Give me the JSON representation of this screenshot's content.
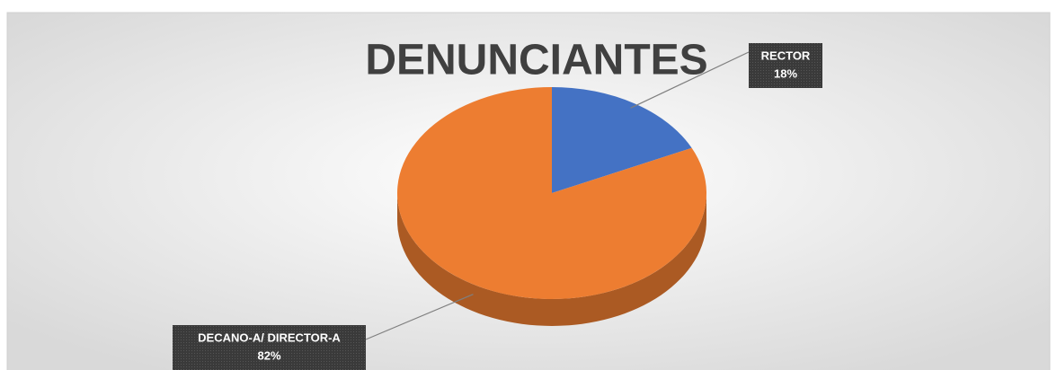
{
  "chart_data": {
    "type": "pie",
    "title": "DENUNCIANTES",
    "categories": [
      "RECTOR",
      "DECANO-A/ DIRECTOR-A"
    ],
    "values": [
      18,
      82
    ],
    "value_labels": [
      "18%",
      "82%"
    ],
    "colors": [
      "#4472c4",
      "#ed7d31"
    ]
  }
}
